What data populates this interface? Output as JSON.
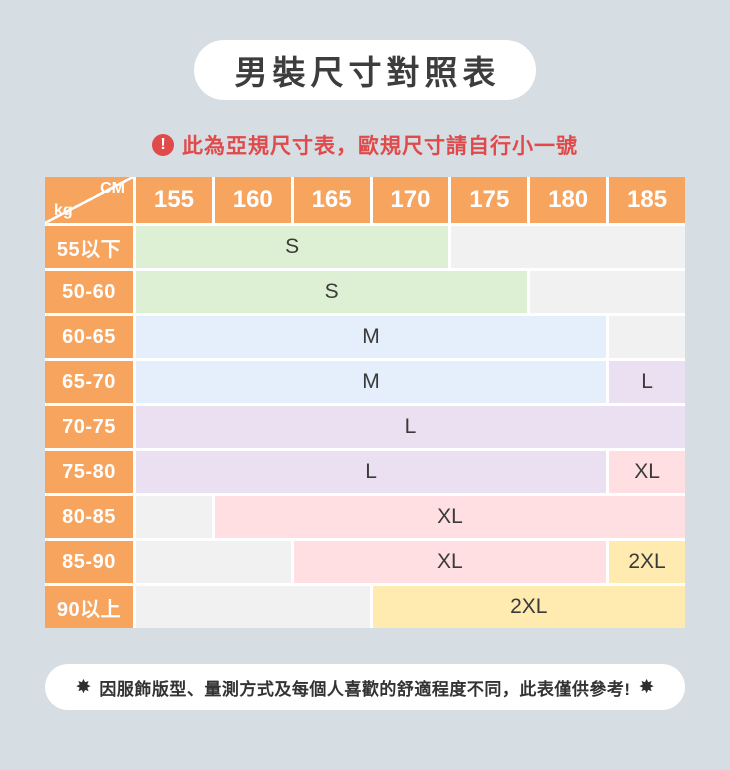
{
  "title": "男裝尺寸對照表",
  "warning": {
    "icon": "!",
    "text": "此為亞規尺寸表，歐規尺寸請自行小一號",
    "color": "#e04a4a"
  },
  "table": {
    "corner": {
      "top": "CM",
      "bottom": "kg"
    },
    "columns": [
      "155",
      "160",
      "165",
      "170",
      "175",
      "180",
      "185"
    ],
    "rows": [
      {
        "label": "55以下",
        "cells": [
          {
            "size": "S",
            "span": 4,
            "color": "green"
          },
          {
            "size": "",
            "span": 3,
            "color": "gray"
          }
        ]
      },
      {
        "label": "50-60",
        "cells": [
          {
            "size": "S",
            "span": 5,
            "color": "green"
          },
          {
            "size": "",
            "span": 2,
            "color": "gray"
          }
        ]
      },
      {
        "label": "60-65",
        "cells": [
          {
            "size": "M",
            "span": 6,
            "color": "blue"
          },
          {
            "size": "",
            "span": 1,
            "color": "gray"
          }
        ]
      },
      {
        "label": "65-70",
        "cells": [
          {
            "size": "M",
            "span": 6,
            "color": "blue"
          },
          {
            "size": "L",
            "span": 1,
            "color": "purple"
          }
        ]
      },
      {
        "label": "70-75",
        "cells": [
          {
            "size": "L",
            "span": 7,
            "color": "purple"
          }
        ]
      },
      {
        "label": "75-80",
        "cells": [
          {
            "size": "L",
            "span": 6,
            "color": "purple"
          },
          {
            "size": "XL",
            "span": 1,
            "color": "pink"
          }
        ]
      },
      {
        "label": "80-85",
        "cells": [
          {
            "size": "",
            "span": 1,
            "color": "gray"
          },
          {
            "size": "XL",
            "span": 6,
            "color": "pink"
          }
        ]
      },
      {
        "label": "85-90",
        "cells": [
          {
            "size": "",
            "span": 2,
            "color": "gray"
          },
          {
            "size": "XL",
            "span": 4,
            "color": "pink"
          },
          {
            "size": "2XL",
            "span": 1,
            "color": "yellow"
          }
        ]
      },
      {
        "label": "90以上",
        "cells": [
          {
            "size": "",
            "span": 3,
            "color": "gray"
          },
          {
            "size": "2XL",
            "span": 4,
            "color": "yellow"
          }
        ]
      }
    ],
    "colors": {
      "header": "#f6a45e",
      "green": "#def0d3",
      "blue": "#e4effb",
      "purple": "#eae0f2",
      "pink": "#ffdfe2",
      "yellow": "#ffeab0",
      "gray": "#f1f1f1"
    }
  },
  "footer": {
    "star": "✸",
    "text": "因服飾版型、量測方式及每個人喜歡的舒適程度不同，此表僅供參考!"
  },
  "chart_data": {
    "type": "table",
    "title": "男裝尺寸對照表",
    "note_top": "此為亞規尺寸表，歐規尺寸請自行小一號",
    "note_bottom": "因服飾版型、量測方式及每個人喜歡的舒適程度不同，此表僅供參考!",
    "columns_cm": [
      155,
      160,
      165,
      170,
      175,
      180,
      185
    ],
    "rows_kg": [
      "55以下",
      "50-60",
      "60-65",
      "65-70",
      "70-75",
      "75-80",
      "80-85",
      "85-90",
      "90以上"
    ],
    "matrix": [
      [
        "S",
        "S",
        "S",
        "S",
        "",
        "",
        ""
      ],
      [
        "S",
        "S",
        "S",
        "S",
        "S",
        "",
        ""
      ],
      [
        "M",
        "M",
        "M",
        "M",
        "M",
        "M",
        ""
      ],
      [
        "M",
        "M",
        "M",
        "M",
        "M",
        "M",
        "L"
      ],
      [
        "L",
        "L",
        "L",
        "L",
        "L",
        "L",
        "L"
      ],
      [
        "L",
        "L",
        "L",
        "L",
        "L",
        "L",
        "XL"
      ],
      [
        "",
        "XL",
        "XL",
        "XL",
        "XL",
        "XL",
        "XL"
      ],
      [
        "",
        "",
        "XL",
        "XL",
        "XL",
        "XL",
        "2XL"
      ],
      [
        "",
        "",
        "",
        "2XL",
        "2XL",
        "2XL",
        "2XL"
      ]
    ]
  }
}
